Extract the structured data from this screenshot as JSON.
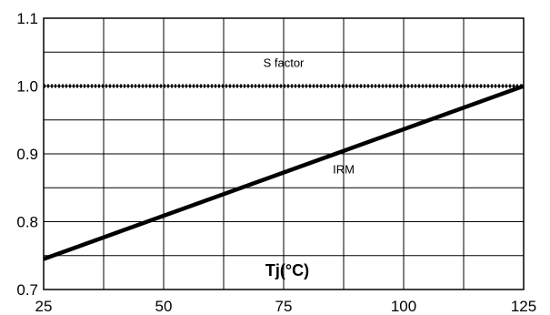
{
  "chart_data": {
    "type": "line",
    "title": "",
    "xlabel": "Tj(°C)",
    "ylabel": "",
    "xlim": [
      25,
      125
    ],
    "ylim": [
      0.7,
      1.1
    ],
    "x_ticks": [
      25,
      50,
      75,
      100,
      125
    ],
    "x_tick_labels": [
      "25",
      "50",
      "75",
      "100",
      "125"
    ],
    "y_ticks": [
      0.7,
      0.8,
      0.9,
      1.0,
      1.1
    ],
    "y_tick_labels": [
      "0.7",
      "0.8",
      "0.9",
      "1.0",
      "1.1"
    ],
    "x_minor_gridlines": [
      25,
      37.5,
      50,
      62.5,
      75,
      87.5,
      100,
      112.5,
      125
    ],
    "y_minor_gridlines": [
      0.7,
      0.75,
      0.8,
      0.85,
      0.9,
      0.95,
      1.0,
      1.05,
      1.1
    ],
    "grid": true,
    "series": [
      {
        "name": "S factor",
        "style": "dotted",
        "x": [
          25,
          125
        ],
        "y": [
          1.0,
          1.0
        ]
      },
      {
        "name": "IRM",
        "style": "solid",
        "x": [
          25,
          125
        ],
        "y": [
          0.745,
          1.0
        ]
      }
    ],
    "annotations": [
      {
        "text": "S factor",
        "x": 75,
        "y": 1.028
      },
      {
        "text": "IRM",
        "x": 87.5,
        "y": 0.871
      }
    ],
    "colors": {
      "line": "#000000",
      "grid": "#000000",
      "background": "#ffffff"
    }
  }
}
